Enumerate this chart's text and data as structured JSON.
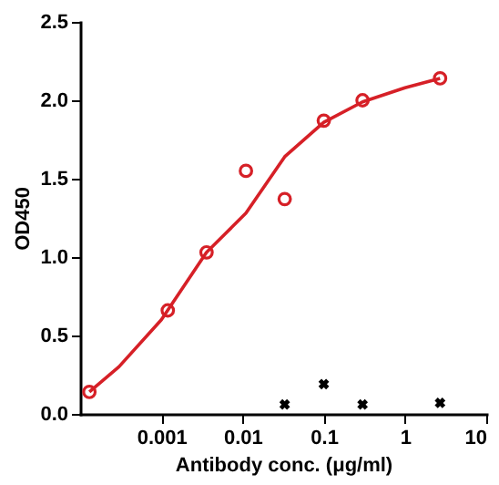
{
  "chart_data": {
    "type": "scatter",
    "xlabel": "Antibody conc. (μg/ml)",
    "ylabel": "OD450",
    "log": "x",
    "grid": false,
    "xlim": [
      0.0001,
      10
    ],
    "xticks": [
      0.001,
      0.01,
      0.1,
      1,
      10
    ],
    "ylim": [
      0,
      2.5
    ],
    "yticks": [
      {
        "value": 0,
        "label": "0.0"
      },
      {
        "value": 0.5,
        "label": "0.5"
      },
      {
        "value": 1,
        "label": "1.0"
      },
      {
        "value": 1.5,
        "label": "1.5"
      },
      {
        "value": 2,
        "label": "2.0"
      },
      {
        "value": 2.5,
        "label": "2.5"
      }
    ],
    "series": [
      {
        "type": "line",
        "color": "#d62027",
        "marker": "none",
        "line_style": "solid",
        "x": [
          0.00013,
          0.0003,
          0.001,
          0.0036,
          0.011,
          0.033,
          0.1,
          0.3,
          1,
          2.7
        ],
        "values": [
          0.14,
          0.3,
          0.6,
          1.03,
          1.28,
          1.64,
          1.86,
          1.99,
          2.08,
          2.14
        ]
      },
      {
        "color": "#d62027",
        "marker": "circle",
        "x": [
          0.00013,
          0.0012,
          0.0036,
          0.011,
          0.033,
          0.1,
          0.3,
          2.7
        ],
        "values": [
          0.14,
          0.66,
          1.03,
          1.55,
          1.37,
          1.87,
          2.0,
          2.14
        ]
      },
      {
        "color": "#000000",
        "marker": "cross",
        "x": [
          0.033,
          0.1,
          0.3,
          2.7
        ],
        "values": [
          0.06,
          0.19,
          0.06,
          0.07
        ]
      }
    ]
  }
}
